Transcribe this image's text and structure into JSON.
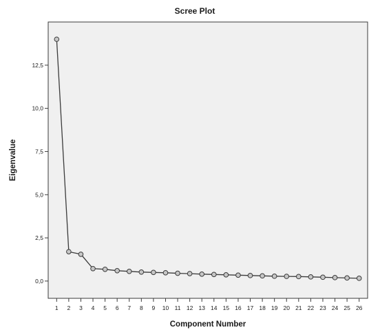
{
  "chart_data": {
    "type": "line",
    "title": "Scree Plot",
    "xlabel": "Component Number",
    "ylabel": "Eigenvalue",
    "x": [
      1,
      2,
      3,
      4,
      5,
      6,
      7,
      8,
      9,
      10,
      11,
      12,
      13,
      14,
      15,
      16,
      17,
      18,
      19,
      20,
      21,
      22,
      23,
      24,
      25,
      26
    ],
    "x_tick_labels": [
      "1",
      "2",
      "3",
      "4",
      "5",
      "6",
      "7",
      "8",
      "9",
      "10",
      "11",
      "12",
      "13",
      "14",
      "15",
      "16",
      "17",
      "18",
      "19",
      "20",
      "21",
      "22",
      "23",
      "24",
      "25",
      "26"
    ],
    "y": [
      14.0,
      1.7,
      1.55,
      0.72,
      0.68,
      0.6,
      0.56,
      0.52,
      0.5,
      0.48,
      0.45,
      0.43,
      0.4,
      0.38,
      0.36,
      0.34,
      0.32,
      0.3,
      0.28,
      0.27,
      0.26,
      0.24,
      0.22,
      0.2,
      0.18,
      0.16
    ],
    "y_ticks": [
      0.0,
      2.5,
      5.0,
      7.5,
      10.0,
      12.5
    ],
    "y_tick_labels": [
      "0,0",
      "2,5",
      "5,0",
      "7,5",
      "10,0",
      "12,5"
    ],
    "xlim": [
      0.3,
      26.7
    ],
    "ylim": [
      -1.0,
      15.0
    ],
    "grid": false,
    "legend": "none",
    "colors": {
      "plot_background": "#f0f0f0",
      "line": "#3a3a3a",
      "marker_fill": "#c7c7c7"
    }
  }
}
